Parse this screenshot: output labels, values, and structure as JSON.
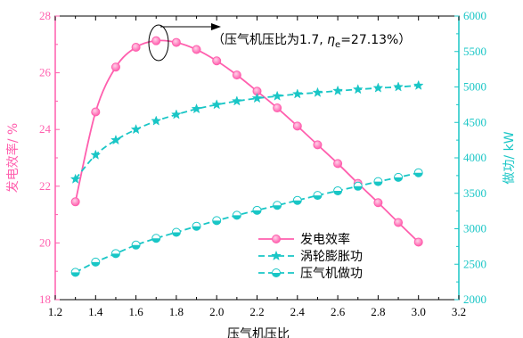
{
  "chart_data": {
    "type": "line",
    "xlabel": "压气机压比",
    "ylabel_left": "发电效率/ %",
    "ylabel_right": "做功/ kW",
    "xlim": [
      1.2,
      3.2
    ],
    "ylim_left": [
      18,
      28
    ],
    "ylim_right": [
      2000,
      6000
    ],
    "x_ticks": [
      "1.2",
      "1.4",
      "1.6",
      "1.8",
      "2.0",
      "2.2",
      "2.4",
      "2.6",
      "2.8",
      "3.0",
      "3.2"
    ],
    "y_left_ticks": [
      "18",
      "20",
      "22",
      "24",
      "26",
      "28"
    ],
    "y_right_ticks": [
      "2000",
      "2500",
      "3000",
      "3500",
      "4000",
      "4500",
      "5000",
      "5500",
      "6000"
    ],
    "x": [
      1.3,
      1.4,
      1.5,
      1.6,
      1.7,
      1.8,
      1.9,
      2.0,
      2.1,
      2.2,
      2.3,
      2.4,
      2.5,
      2.6,
      2.7,
      2.8,
      2.9,
      3.0
    ],
    "series": [
      {
        "name": "发电效率",
        "axis": "left",
        "marker": "circle",
        "color": "#ff5fae",
        "values": [
          21.45,
          24.62,
          26.2,
          26.9,
          27.13,
          27.07,
          26.82,
          26.42,
          25.92,
          25.35,
          24.76,
          24.12,
          23.46,
          22.8,
          22.1,
          21.42,
          20.72,
          20.03
        ]
      },
      {
        "name": "涡轮膨胀功",
        "axis": "right",
        "marker": "star",
        "color": "#19c6c6",
        "values": [
          3700,
          4040,
          4250,
          4400,
          4520,
          4610,
          4690,
          4750,
          4800,
          4840,
          4870,
          4900,
          4920,
          4945,
          4965,
          4985,
          5000,
          5020
        ]
      },
      {
        "name": "压气机做功",
        "axis": "right",
        "marker": "circle-half",
        "color": "#19c6c6",
        "values": [
          2385,
          2530,
          2650,
          2770,
          2865,
          2950,
          3035,
          3115,
          3190,
          3260,
          3330,
          3400,
          3470,
          3535,
          3600,
          3665,
          3725,
          3790
        ]
      }
    ],
    "annotation": {
      "text_main": "压气机压比为1.7, ",
      "text_eta": "η",
      "text_sub": "e",
      "text_value": "=27.13%",
      "paren_open": "（",
      "paren_close": "）"
    },
    "legend_position": "lower-right"
  }
}
